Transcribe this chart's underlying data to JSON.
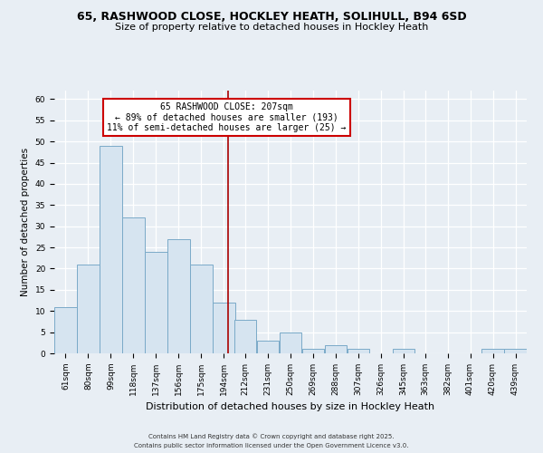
{
  "title1": "65, RASHWOOD CLOSE, HOCKLEY HEATH, SOLIHULL, B94 6SD",
  "title2": "Size of property relative to detached houses in Hockley Heath",
  "xlabel": "Distribution of detached houses by size in Hockley Heath",
  "ylabel": "Number of detached properties",
  "bin_labels": [
    "61sqm",
    "80sqm",
    "99sqm",
    "118sqm",
    "137sqm",
    "156sqm",
    "175sqm",
    "194sqm",
    "212sqm",
    "231sqm",
    "250sqm",
    "269sqm",
    "288sqm",
    "307sqm",
    "326sqm",
    "345sqm",
    "363sqm",
    "382sqm",
    "401sqm",
    "420sqm",
    "439sqm"
  ],
  "bin_edges": [
    61,
    80,
    99,
    118,
    137,
    156,
    175,
    194,
    212,
    231,
    250,
    269,
    288,
    307,
    326,
    345,
    363,
    382,
    401,
    420,
    439
  ],
  "counts": [
    11,
    21,
    49,
    32,
    24,
    27,
    21,
    12,
    8,
    3,
    5,
    1,
    2,
    1,
    0,
    1,
    0,
    0,
    0,
    1,
    1
  ],
  "bar_color": "#d6e4f0",
  "bar_edge_color": "#7aaac8",
  "vline_x": 207,
  "vline_color": "#aa0000",
  "annotation_title": "65 RASHWOOD CLOSE: 207sqm",
  "annotation_line1": "← 89% of detached houses are smaller (193)",
  "annotation_line2": "11% of semi-detached houses are larger (25) →",
  "annotation_box_color": "#ffffff",
  "annotation_box_edge": "#cc0000",
  "ylim": [
    0,
    62
  ],
  "yticks": [
    0,
    5,
    10,
    15,
    20,
    25,
    30,
    35,
    40,
    45,
    50,
    55,
    60
  ],
  "footer1": "Contains HM Land Registry data © Crown copyright and database right 2025.",
  "footer2": "Contains public sector information licensed under the Open Government Licence v3.0.",
  "bg_color": "#e8eef4",
  "grid_color": "#ffffff",
  "title_fontsize": 9,
  "subtitle_fontsize": 8,
  "ylabel_fontsize": 7.5,
  "xlabel_fontsize": 8,
  "tick_fontsize": 6.5,
  "annot_fontsize": 7,
  "footer_fontsize": 5
}
